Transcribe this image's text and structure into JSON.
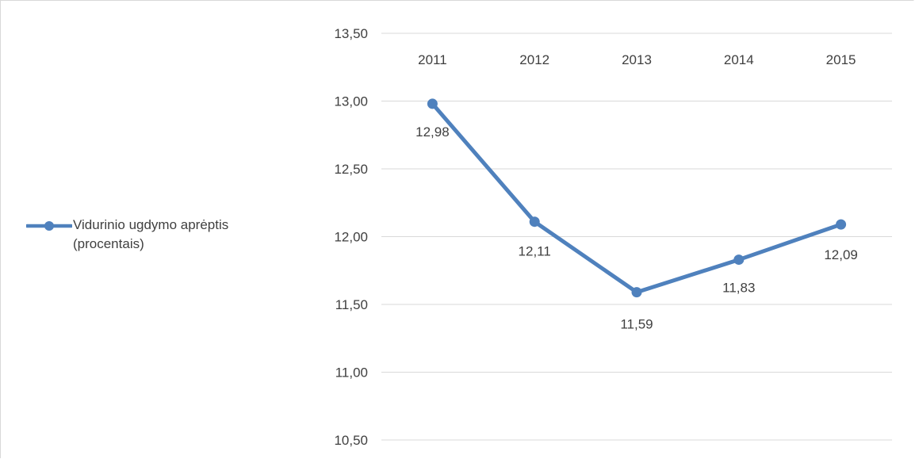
{
  "chart_data": {
    "type": "line",
    "categories": [
      "2011",
      "2012",
      "2013",
      "2014",
      "2015"
    ],
    "series": [
      {
        "name": "Vidurinio ugdymo aprėptis (procentais)",
        "values": [
          12.98,
          12.11,
          11.59,
          11.83,
          12.09
        ],
        "labels": [
          "12,98",
          "12,11",
          "11,59",
          "11,83",
          "12,09"
        ],
        "color": "#4f81bd"
      }
    ],
    "ylim": [
      10.5,
      13.5
    ],
    "yticks": [
      13.5,
      13.0,
      12.5,
      12.0,
      11.5,
      11.0,
      10.5
    ],
    "ytick_labels": [
      "13,50",
      "13,00",
      "12,50",
      "12,00",
      "11,50",
      "11,00",
      "10,50"
    ],
    "xaxis_position": "top",
    "grid": true,
    "legend_position": "left",
    "legend_lines": [
      "Vidurinio ugdymo aprėptis",
      "(procentais)"
    ]
  }
}
